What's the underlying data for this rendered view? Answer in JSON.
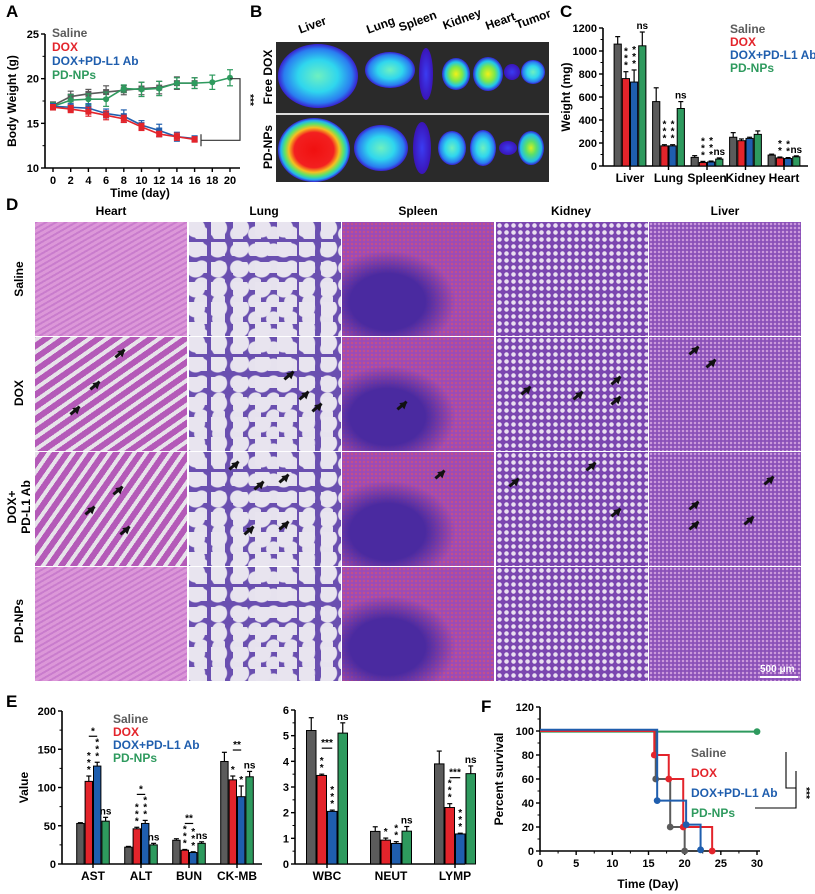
{
  "colors": {
    "saline": "#5b5b5b",
    "dox": "#e3242b",
    "dox_pdl1": "#1f5eae",
    "pdnps": "#2e9a5e"
  },
  "panels": {
    "A": {
      "letter": "A"
    },
    "B": {
      "letter": "B",
      "organs": [
        "Liver",
        "Lung",
        "Spleen",
        "Kidney",
        "Heart",
        "Tumor"
      ],
      "rows": [
        "Free DOX",
        "PD-NPs"
      ]
    },
    "C": {
      "letter": "C"
    },
    "D": {
      "letter": "D",
      "columns": [
        "Heart",
        "Lung",
        "Spleen",
        "Kidney",
        "Liver"
      ],
      "rows": [
        "Saline",
        "DOX",
        "DOX+\nPD-L1 Ab",
        "PD-NPs"
      ],
      "row_labels": {
        "r0": "Saline",
        "r1": "DOX",
        "r2a": "DOX+",
        "r2b": "PD-L1 Ab",
        "r3": "PD-NPs"
      },
      "scale_bar": "500 μm"
    },
    "E": {
      "letter": "E"
    },
    "F": {
      "letter": "F"
    }
  },
  "legend": [
    "Saline",
    "DOX",
    "DOX+PD-L1 Ab",
    "PD-NPs"
  ],
  "chart_data": [
    {
      "id": "A",
      "type": "line",
      "title": "",
      "xlabel": "Time (day)",
      "ylabel": "Body Weight (g)",
      "xlim": [
        0,
        20
      ],
      "ylim": [
        10,
        25
      ],
      "xticks": [
        0,
        2,
        4,
        6,
        8,
        10,
        12,
        14,
        16,
        18,
        20
      ],
      "yticks": [
        10,
        15,
        20,
        25
      ],
      "series": [
        {
          "name": "Saline",
          "x": [
            0,
            2,
            4,
            6,
            8,
            10,
            12,
            14,
            16
          ],
          "values": [
            17.0,
            18.0,
            18.3,
            18.5,
            18.7,
            18.9,
            19.0,
            19.5,
            19.5
          ],
          "err": [
            0.4,
            0.6,
            0.5,
            0.7,
            0.5,
            0.7,
            0.7,
            0.7,
            0.6
          ]
        },
        {
          "name": "DOX",
          "x": [
            0,
            2,
            4,
            6,
            8,
            10,
            12,
            14,
            16
          ],
          "values": [
            16.8,
            16.6,
            16.3,
            15.9,
            15.5,
            14.6,
            13.8,
            13.5,
            13.2
          ],
          "err": [
            0.3,
            0.4,
            0.5,
            0.5,
            0.4,
            0.4,
            0.3,
            0.4,
            0.3
          ]
        },
        {
          "name": "DOX+PD-L1 Ab",
          "x": [
            0,
            2,
            4,
            6,
            8,
            10,
            12,
            14,
            16
          ],
          "values": [
            16.9,
            16.8,
            16.7,
            16.1,
            15.8,
            14.8,
            14.2,
            13.5,
            13.3
          ],
          "err": [
            0.3,
            0.4,
            0.5,
            0.5,
            0.7,
            0.5,
            0.7,
            0.5,
            0.3
          ]
        },
        {
          "name": "PD-NPs",
          "x": [
            0,
            2,
            4,
            6,
            8,
            10,
            12,
            14,
            16,
            18,
            20
          ],
          "values": [
            16.9,
            17.6,
            17.7,
            17.7,
            18.9,
            18.8,
            18.9,
            19.5,
            19.5,
            19.6,
            20.1
          ],
          "err": [
            0.4,
            0.6,
            0.6,
            0.8,
            0.4,
            0.8,
            0.8,
            0.6,
            0.6,
            0.8,
            0.9
          ]
        }
      ],
      "annotation": "***"
    },
    {
      "id": "C",
      "type": "bar",
      "categories": [
        "Liver",
        "Lung",
        "Spleen",
        "Kidney",
        "Heart"
      ],
      "ylabel": "Weight (mg)",
      "ylim": [
        0,
        1200
      ],
      "yticks": [
        0,
        200,
        400,
        600,
        800,
        1000,
        1200
      ],
      "series": [
        {
          "name": "Saline",
          "values": [
            1060,
            560,
            75,
            250,
            95
          ],
          "err": [
            65,
            120,
            15,
            40,
            8
          ]
        },
        {
          "name": "DOX",
          "values": [
            760,
            175,
            30,
            220,
            70
          ],
          "err": [
            60,
            10,
            10,
            15,
            8
          ]
        },
        {
          "name": "DOX+PD-L1 Ab",
          "values": [
            730,
            175,
            35,
            240,
            65
          ],
          "err": [
            105,
            10,
            8,
            10,
            8
          ]
        },
        {
          "name": "PD-NPs",
          "values": [
            1045,
            500,
            60,
            275,
            80
          ],
          "err": [
            120,
            60,
            10,
            30,
            8
          ]
        }
      ],
      "significance": [
        {
          "cat": 0,
          "bar": 1,
          "text": "***"
        },
        {
          "cat": 0,
          "bar": 2,
          "text": "***"
        },
        {
          "cat": 0,
          "bar": 3,
          "text": "ns"
        },
        {
          "cat": 1,
          "bar": 1,
          "text": "***"
        },
        {
          "cat": 1,
          "bar": 2,
          "text": "***"
        },
        {
          "cat": 1,
          "bar": 3,
          "text": "ns"
        },
        {
          "cat": 2,
          "bar": 1,
          "text": "***"
        },
        {
          "cat": 2,
          "bar": 2,
          "text": "***"
        },
        {
          "cat": 2,
          "bar": 3,
          "text": "ns"
        },
        {
          "cat": 4,
          "bar": 1,
          "text": "**"
        },
        {
          "cat": 4,
          "bar": 2,
          "text": "**"
        },
        {
          "cat": 4,
          "bar": 3,
          "text": "ns"
        }
      ]
    },
    {
      "id": "E-left",
      "type": "bar",
      "categories": [
        "AST",
        "ALT",
        "BUN",
        "CK-MB"
      ],
      "ylabel": "Value",
      "ylim": [
        0,
        200
      ],
      "yticks": [
        0,
        50,
        100,
        150,
        200
      ],
      "series": [
        {
          "name": "Saline",
          "values": [
            53,
            22,
            31,
            134
          ],
          "err": [
            1,
            1,
            2,
            12
          ]
        },
        {
          "name": "DOX",
          "values": [
            108,
            46,
            18,
            110
          ],
          "err": [
            7,
            2,
            1,
            5
          ]
        },
        {
          "name": "DOX+PD-L1 Ab",
          "values": [
            128,
            53,
            15,
            88
          ],
          "err": [
            5,
            4,
            1,
            14
          ]
        },
        {
          "name": "PD-NPs",
          "values": [
            56,
            25,
            27,
            114
          ],
          "err": [
            5,
            2,
            2,
            7
          ]
        }
      ],
      "significance": [
        {
          "cat": 0,
          "bar": 1,
          "text": "***"
        },
        {
          "cat": 0,
          "bar": 2,
          "text": "***"
        },
        {
          "cat": 0,
          "bar": 3,
          "text": "ns"
        },
        {
          "cat": 0,
          "bracket": [
            1,
            2
          ],
          "text": "*"
        },
        {
          "cat": 1,
          "bar": 1,
          "text": "***"
        },
        {
          "cat": 1,
          "bar": 2,
          "text": "***"
        },
        {
          "cat": 1,
          "bar": 3,
          "text": "ns"
        },
        {
          "cat": 1,
          "bracket": [
            1,
            2
          ],
          "text": "*"
        },
        {
          "cat": 2,
          "bar": 1,
          "text": "***"
        },
        {
          "cat": 2,
          "bar": 2,
          "text": "***"
        },
        {
          "cat": 2,
          "bar": 3,
          "text": "ns"
        },
        {
          "cat": 2,
          "bracket": [
            1,
            2
          ],
          "text": "**"
        },
        {
          "cat": 3,
          "bar": 1,
          "text": "*"
        },
        {
          "cat": 3,
          "bar": 2,
          "text": "*"
        },
        {
          "cat": 3,
          "bar": 3,
          "text": "ns"
        },
        {
          "cat": 3,
          "bracket": [
            1,
            2
          ],
          "text": "**"
        }
      ]
    },
    {
      "id": "E-right",
      "type": "bar",
      "categories": [
        "WBC",
        "NEUT",
        "LYMP"
      ],
      "ylabel": "",
      "ylim": [
        0,
        6
      ],
      "yticks": [
        0,
        1,
        2,
        3,
        4,
        5,
        6
      ],
      "series": [
        {
          "name": "Saline",
          "values": [
            5.2,
            1.27,
            3.9
          ],
          "err": [
            0.5,
            0.18,
            0.5
          ]
        },
        {
          "name": "DOX",
          "values": [
            3.45,
            0.93,
            2.2
          ],
          "err": [
            0.05,
            0.08,
            0.15
          ]
        },
        {
          "name": "DOX+PD-L1 Ab",
          "values": [
            2.05,
            0.8,
            1.17
          ],
          "err": [
            0.05,
            0.07,
            0.03
          ]
        },
        {
          "name": "PD-NPs",
          "values": [
            5.1,
            1.28,
            3.52
          ],
          "err": [
            0.4,
            0.18,
            0.3
          ]
        }
      ],
      "significance": [
        {
          "cat": 0,
          "bar": 1,
          "text": "**"
        },
        {
          "cat": 0,
          "bar": 2,
          "text": "***"
        },
        {
          "cat": 0,
          "bar": 3,
          "text": "ns"
        },
        {
          "cat": 0,
          "bracket": [
            1,
            2
          ],
          "text": "***"
        },
        {
          "cat": 1,
          "bar": 1,
          "text": "*"
        },
        {
          "cat": 1,
          "bar": 2,
          "text": "**"
        },
        {
          "cat": 1,
          "bar": 3,
          "text": "ns"
        },
        {
          "cat": 2,
          "bar": 1,
          "text": "***"
        },
        {
          "cat": 2,
          "bar": 2,
          "text": "***"
        },
        {
          "cat": 2,
          "bar": 3,
          "text": "ns"
        },
        {
          "cat": 2,
          "bracket": [
            1,
            2
          ],
          "text": "***"
        }
      ]
    },
    {
      "id": "F",
      "type": "line",
      "subtype": "kaplan-meier",
      "xlabel": "Time (Day)",
      "ylabel": "Percent survival",
      "xlim": [
        0,
        30
      ],
      "ylim": [
        0,
        120
      ],
      "xticks": [
        0,
        5,
        10,
        15,
        20,
        25,
        30
      ],
      "yticks": [
        0,
        20,
        40,
        60,
        80,
        100,
        120
      ],
      "series": [
        {
          "name": "Saline",
          "steps": [
            [
              0,
              100
            ],
            [
              16,
              100
            ],
            [
              16,
              60
            ],
            [
              18,
              60
            ],
            [
              18,
              20
            ],
            [
              20,
              20
            ],
            [
              20,
              0
            ]
          ],
          "points": [
            [
              16,
              60
            ],
            [
              18,
              20
            ],
            [
              20,
              0
            ]
          ]
        },
        {
          "name": "DOX",
          "steps": [
            [
              0,
              100
            ],
            [
              15.8,
              100
            ],
            [
              15.8,
              80
            ],
            [
              17.8,
              80
            ],
            [
              17.8,
              60
            ],
            [
              19.8,
              60
            ],
            [
              19.8,
              20
            ],
            [
              23.8,
              20
            ],
            [
              23.8,
              0
            ]
          ],
          "points": [
            [
              15.8,
              80
            ],
            [
              17.8,
              60
            ],
            [
              19.8,
              20
            ],
            [
              23.8,
              0
            ]
          ]
        },
        {
          "name": "DOX+PD-L1 Ab",
          "steps": [
            [
              0,
              101
            ],
            [
              16.2,
              101
            ],
            [
              16.2,
              42
            ],
            [
              20.2,
              42
            ],
            [
              20.2,
              22
            ],
            [
              22.2,
              22
            ],
            [
              22.2,
              1
            ]
          ],
          "points": [
            [
              16.2,
              42
            ],
            [
              20.2,
              22
            ],
            [
              22.2,
              1
            ]
          ]
        },
        {
          "name": "PD-NPs",
          "steps": [
            [
              0,
              99.5
            ],
            [
              30,
              99.5
            ]
          ],
          "points": [
            [
              30,
              99.5
            ]
          ]
        }
      ],
      "annotation": "***"
    }
  ]
}
